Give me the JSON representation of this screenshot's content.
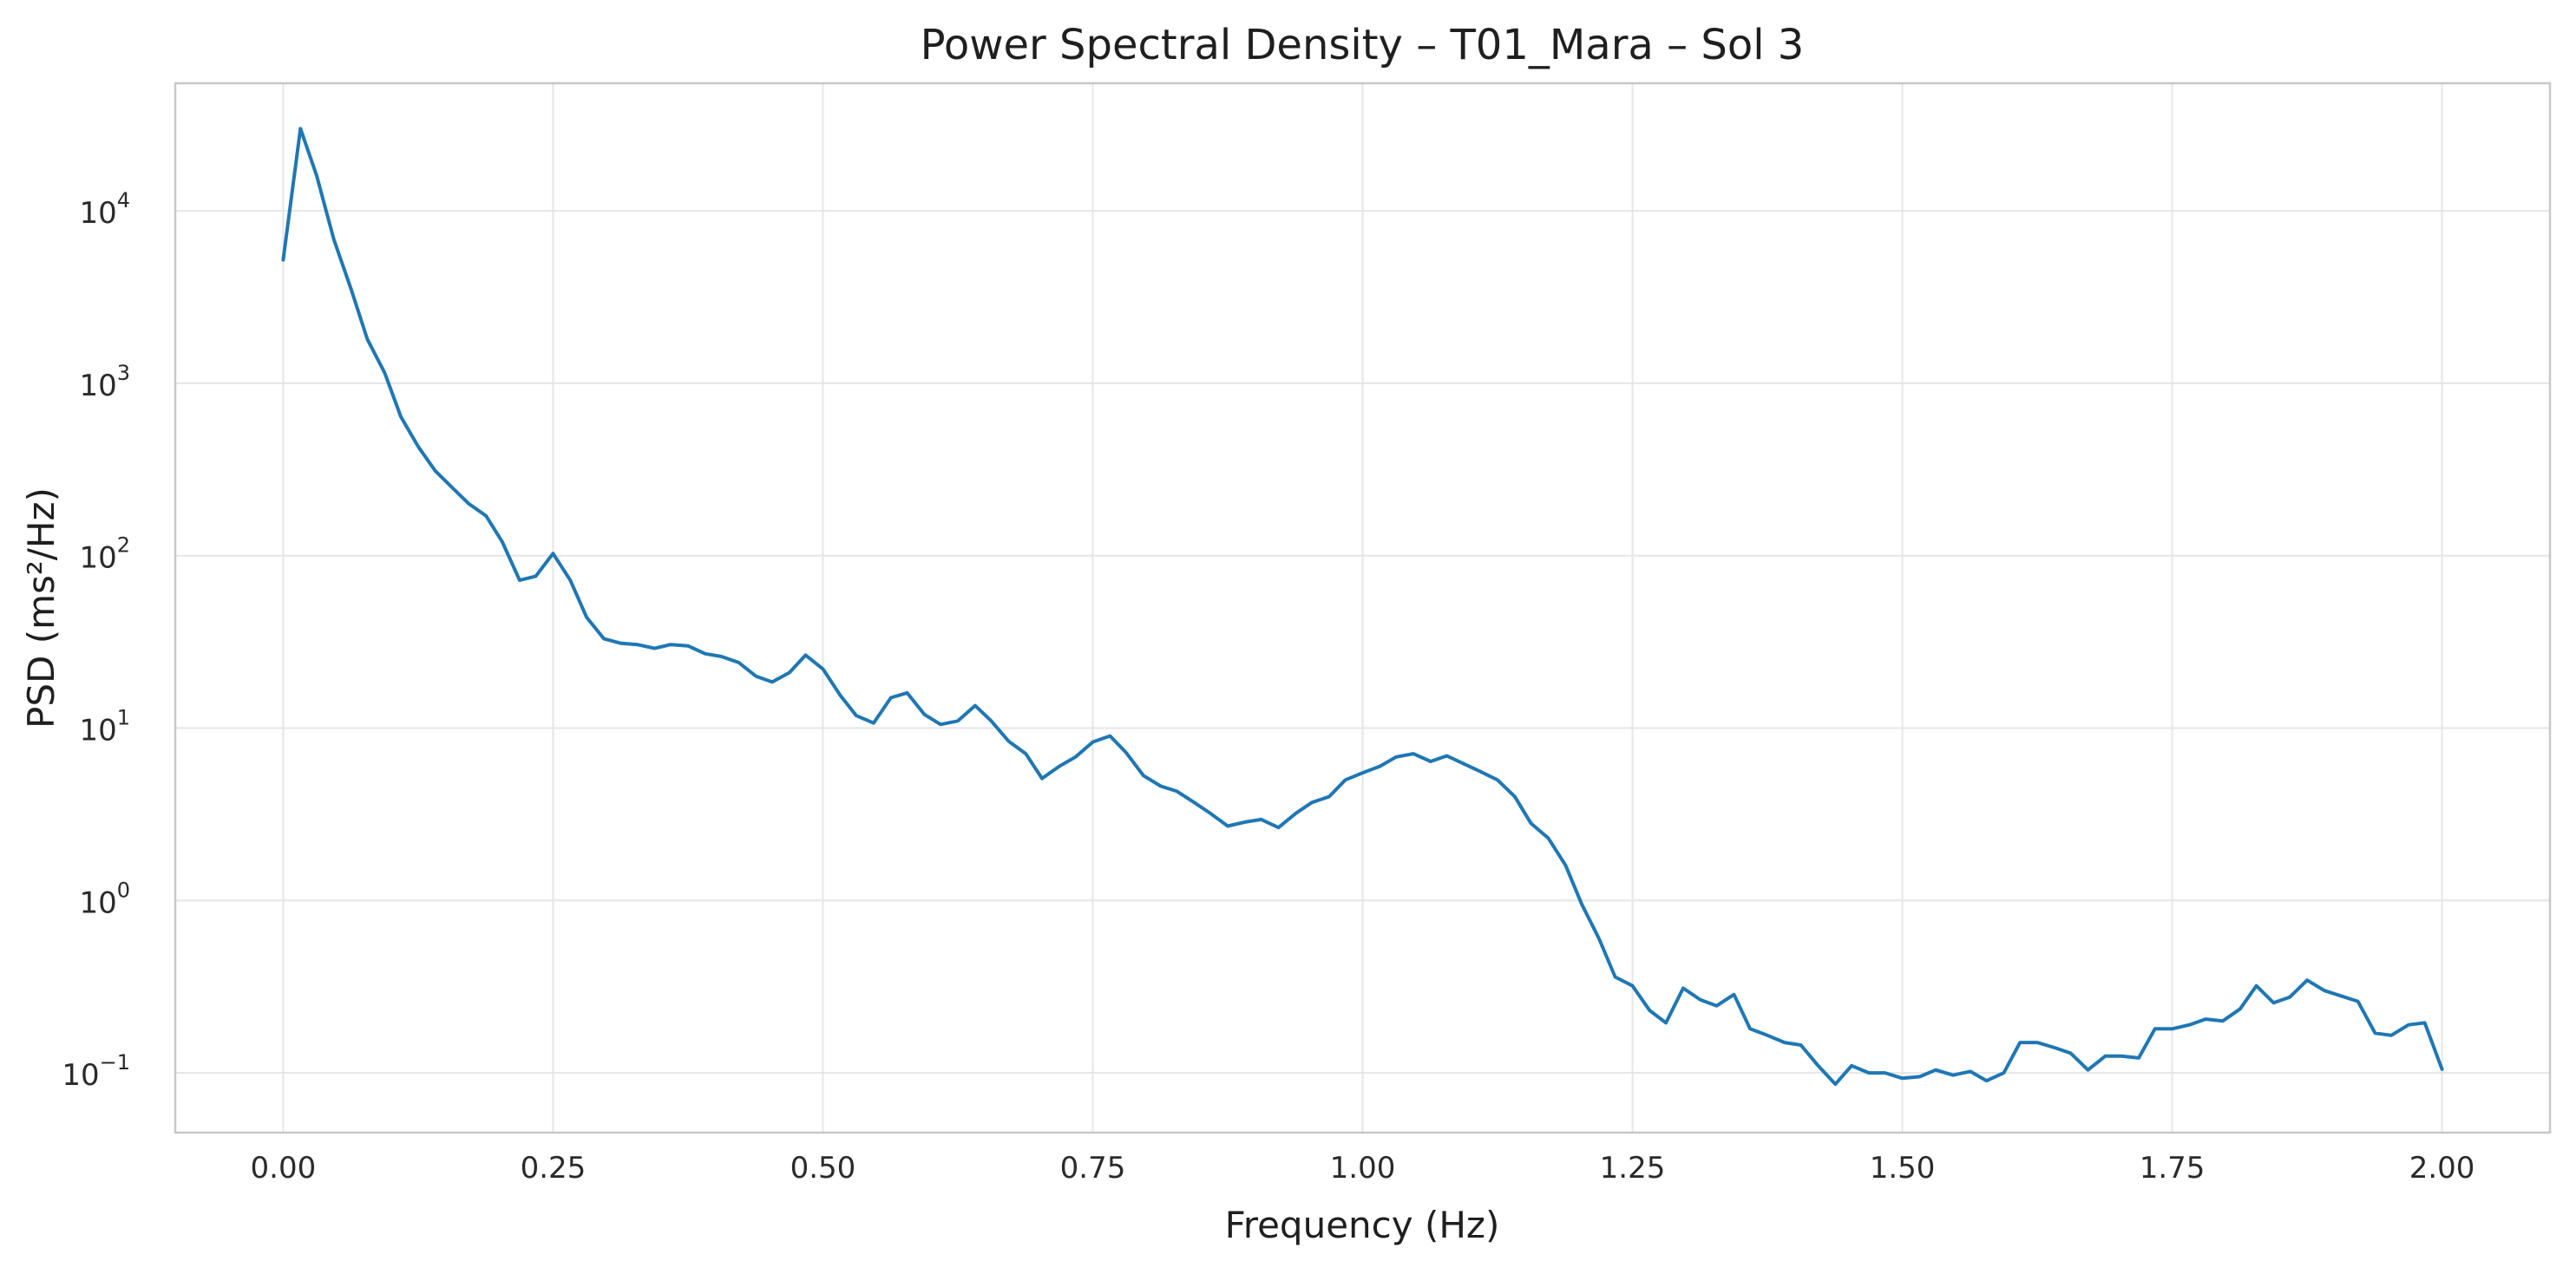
{
  "chart_data": {
    "type": "line",
    "title": "Power Spectral Density – T01_Mara – Sol 3",
    "xlabel": "Frequency (Hz)",
    "ylabel": "PSD (ms²/Hz)",
    "xlim": [
      -0.1,
      2.1
    ],
    "ylim": [
      0.045,
      55000
    ],
    "yscale": "log",
    "grid": true,
    "x_ticks": [
      {
        "value": 0.0,
        "label": "0.00"
      },
      {
        "value": 0.25,
        "label": "0.25"
      },
      {
        "value": 0.5,
        "label": "0.50"
      },
      {
        "value": 0.75,
        "label": "0.75"
      },
      {
        "value": 1.0,
        "label": "1.00"
      },
      {
        "value": 1.25,
        "label": "1.25"
      },
      {
        "value": 1.5,
        "label": "1.50"
      },
      {
        "value": 1.75,
        "label": "1.75"
      },
      {
        "value": 2.0,
        "label": "2.00"
      }
    ],
    "y_ticks": [
      {
        "value": 10000,
        "base": "10",
        "exp": "4"
      },
      {
        "value": 1000,
        "base": "10",
        "exp": "3"
      },
      {
        "value": 100,
        "base": "10",
        "exp": "2"
      },
      {
        "value": 10,
        "base": "10",
        "exp": "1"
      },
      {
        "value": 1,
        "base": "10",
        "exp": "0"
      },
      {
        "value": 0.1,
        "base": "10",
        "exp": "−1"
      }
    ],
    "color": "#1f77b4",
    "series": [
      {
        "x": [
          0.0,
          0.016,
          0.031,
          0.047,
          0.063,
          0.078,
          0.094,
          0.109,
          0.125,
          0.141,
          0.156,
          0.172,
          0.188,
          0.203,
          0.219,
          0.234,
          0.25,
          0.266,
          0.281,
          0.297,
          0.313,
          0.328,
          0.344,
          0.359,
          0.375,
          0.391,
          0.406,
          0.422,
          0.438,
          0.453,
          0.469,
          0.484,
          0.5,
          0.516,
          0.531,
          0.547,
          0.563,
          0.578,
          0.594,
          0.609,
          0.625,
          0.641,
          0.656,
          0.672,
          0.688,
          0.703,
          0.719,
          0.734,
          0.75,
          0.766,
          0.781,
          0.797,
          0.813,
          0.828,
          0.844,
          0.859,
          0.875,
          0.891,
          0.906,
          0.922,
          0.938,
          0.953,
          0.969,
          0.984,
          1.0,
          1.016,
          1.031,
          1.047,
          1.063,
          1.078,
          1.094,
          1.109,
          1.125,
          1.141,
          1.156,
          1.172,
          1.188,
          1.203,
          1.219,
          1.234,
          1.25,
          1.266,
          1.281,
          1.297,
          1.313,
          1.328,
          1.344,
          1.359,
          1.375,
          1.391,
          1.406,
          1.422,
          1.438,
          1.453,
          1.469,
          1.484,
          1.5,
          1.516,
          1.531,
          1.547,
          1.563,
          1.578,
          1.594,
          1.609,
          1.625,
          1.641,
          1.656,
          1.672,
          1.688,
          1.703,
          1.719,
          1.734,
          1.75,
          1.766,
          1.781,
          1.797,
          1.813,
          1.828,
          1.844,
          1.859,
          1.875,
          1.891,
          1.906,
          1.922,
          1.938,
          1.953,
          1.969,
          1.984,
          2.0
        ],
        "y": [
          5200,
          30000,
          16000,
          6800,
          3500,
          1800,
          1150,
          640,
          430,
          310,
          250,
          200,
          170,
          120,
          72,
          76,
          103,
          72,
          44,
          33,
          31,
          30.5,
          29,
          30.5,
          30,
          27,
          26,
          24,
          20,
          18.5,
          21,
          26.5,
          22,
          15.5,
          11.8,
          10.7,
          15,
          16,
          12,
          10.5,
          11,
          13.5,
          11,
          8.4,
          7.1,
          5.1,
          6,
          6.8,
          8.3,
          9,
          7.2,
          5.3,
          4.6,
          4.3,
          3.7,
          3.2,
          2.7,
          2.85,
          2.95,
          2.65,
          3.2,
          3.7,
          4,
          5,
          5.5,
          6,
          6.8,
          7.1,
          6.4,
          6.9,
          6.2,
          5.6,
          5,
          4,
          2.8,
          2.3,
          1.6,
          0.95,
          0.6,
          0.36,
          0.32,
          0.23,
          0.195,
          0.31,
          0.265,
          0.245,
          0.285,
          0.18,
          0.165,
          0.15,
          0.145,
          0.11,
          0.086,
          0.11,
          0.1,
          0.1,
          0.093,
          0.095,
          0.104,
          0.097,
          0.102,
          0.09,
          0.1,
          0.15,
          0.15,
          0.14,
          0.13,
          0.104,
          0.125,
          0.125,
          0.122,
          0.18,
          0.18,
          0.19,
          0.205,
          0.2,
          0.235,
          0.32,
          0.255,
          0.275,
          0.345,
          0.3,
          0.28,
          0.26,
          0.17,
          0.165,
          0.19,
          0.195,
          0.105
        ]
      }
    ]
  }
}
